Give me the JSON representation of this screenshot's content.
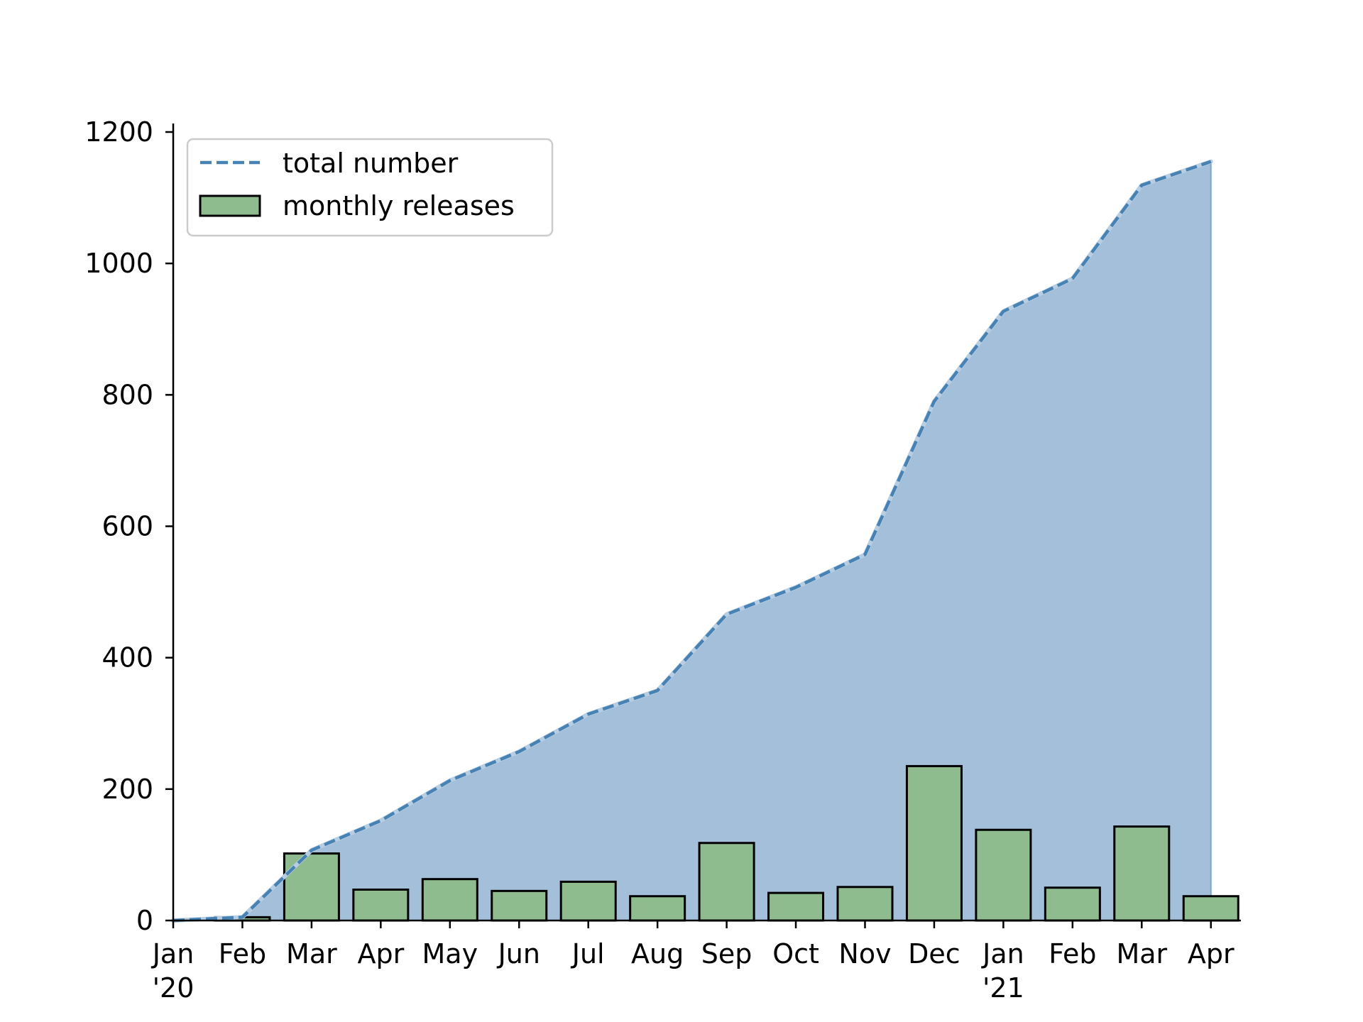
{
  "chart_data": {
    "type": "bar",
    "x": [
      "Jan '20",
      "Feb '20",
      "Mar '20",
      "Apr '20",
      "May '20",
      "Jun '20",
      "Jul '20",
      "Aug '20",
      "Sep '20",
      "Oct '20",
      "Nov '20",
      "Dec '20",
      "Jan '21",
      "Feb '21",
      "Mar '21",
      "Apr '21"
    ],
    "xtick_labels": [
      [
        "Jan",
        "'20"
      ],
      [
        "Feb"
      ],
      [
        "Mar"
      ],
      [
        "Apr"
      ],
      [
        "May"
      ],
      [
        "Jun"
      ],
      [
        "Jul"
      ],
      [
        "Aug"
      ],
      [
        "Sep"
      ],
      [
        "Oct"
      ],
      [
        "Nov"
      ],
      [
        "Dec"
      ],
      [
        "Jan",
        "'21"
      ],
      [
        "Feb"
      ],
      [
        "Mar"
      ],
      [
        "Apr"
      ]
    ],
    "ylim": [
      0,
      1200
    ],
    "yticks": [
      0,
      200,
      400,
      600,
      800,
      1000,
      1200
    ],
    "grid": false,
    "legend_position": "upper-left",
    "series": [
      {
        "name": "total number",
        "kind": "line+area",
        "style": "dashed",
        "color": "#4682b4",
        "fill_color": "#a3bfda",
        "values": [
          0,
          5,
          107,
          152,
          213,
          257,
          314,
          350,
          466,
          507,
          557,
          790,
          927,
          977,
          1119,
          1155
        ]
      },
      {
        "name": "monthly releases",
        "kind": "bar",
        "color": "#8fbc8f",
        "edge_color": "#000000",
        "values": [
          0,
          5,
          102,
          47,
          63,
          45,
          59,
          37,
          118,
          42,
          51,
          235,
          138,
          50,
          143,
          37
        ]
      }
    ]
  }
}
